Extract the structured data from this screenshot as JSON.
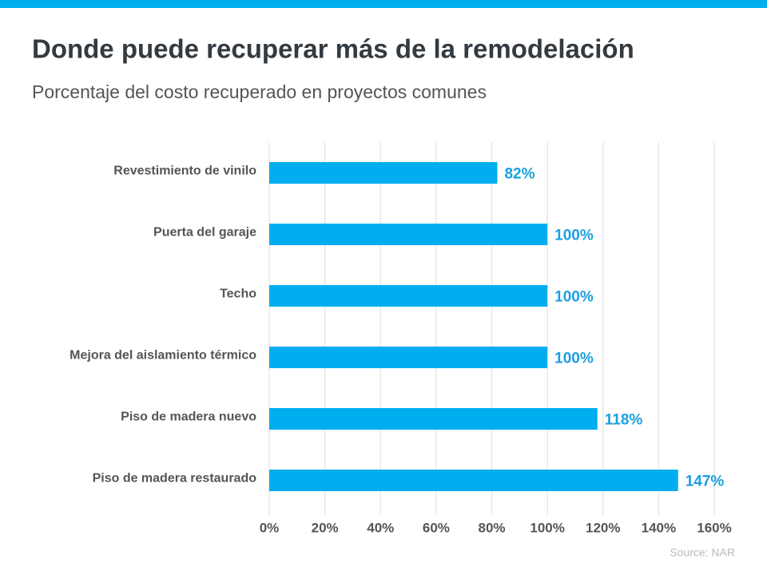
{
  "chart_data": {
    "type": "barh",
    "title": "Donde puede recuperar más de la remodelación",
    "subtitle": "Porcentaje del costo recuperado en proyectos comunes",
    "categories": [
      "Revestimiento de vinilo",
      "Puerta del garaje",
      "Techo",
      "Mejora del aislamiento térmico",
      "Piso de madera nuevo",
      "Piso de madera restaurado"
    ],
    "values": [
      82,
      100,
      100,
      100,
      118,
      147
    ],
    "value_labels": [
      "82%",
      "100%",
      "100%",
      "100%",
      "118%",
      "147%"
    ],
    "color": "#00aeef",
    "xlim": [
      0,
      160
    ],
    "xticks": [
      {
        "value": 0,
        "label": "0%"
      },
      {
        "value": 20,
        "label": "20%"
      },
      {
        "value": 40,
        "label": "40%"
      },
      {
        "value": 60,
        "label": "60%"
      },
      {
        "value": 80,
        "label": "80%"
      },
      {
        "value": 100,
        "label": "100%"
      },
      {
        "value": 120,
        "label": "120%"
      },
      {
        "value": 140,
        "label": "140%"
      },
      {
        "value": 160,
        "label": "160%"
      }
    ],
    "grid": true,
    "source": "Source: NAR"
  }
}
